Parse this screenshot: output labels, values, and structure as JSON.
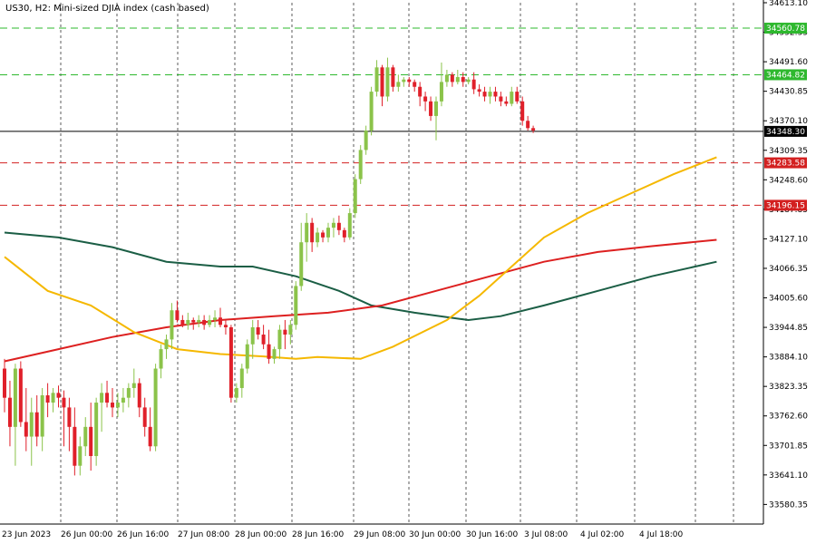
{
  "chart_title": "US30, H2:  Mini-sized DJIA index (cash based)",
  "colors": {
    "bull": "#8bc34a",
    "bear": "#e0202a",
    "ma_fast": "#f5b800",
    "ma_mid": "#dd2020",
    "ma_slow": "#1b5e45",
    "level_green": "#2eb82e",
    "level_red": "#d32020"
  },
  "chart_data": {
    "type": "candlestick",
    "symbol": "US30",
    "timeframe": "H2",
    "ylim": [
      33540,
      34613.1
    ],
    "grid": "vertical dashed",
    "y_ticks": [
      "34613.10",
      "34552.35",
      "34491.60",
      "34430.85",
      "34370.10",
      "34309.35",
      "34248.60",
      "34187.85",
      "34127.10",
      "34066.35",
      "34005.60",
      "33944.85",
      "33884.10",
      "33823.35",
      "33762.60",
      "33701.85",
      "33641.10",
      "33580.35"
    ],
    "x_ticks": [
      "23 Jun 2023",
      "26 Jun 00:00",
      "26 Jun 16:00",
      "27 Jun 08:00",
      "28 Jun 00:00",
      "28 Jun 16:00",
      "29 Jun 08:00",
      "30 Jun 00:00",
      "30 Jun 16:00",
      "3 Jul 08:00",
      "4 Jul 02:00",
      "4 Jul 18:00"
    ],
    "current_price": {
      "value": 34348.3,
      "label": "34348.30"
    },
    "levels": [
      {
        "value": 34560.78,
        "label": "34560.78",
        "kind": "resistance"
      },
      {
        "value": 34464.82,
        "label": "34464.82",
        "kind": "resistance"
      },
      {
        "value": 34283.58,
        "label": "34283.58",
        "kind": "support"
      },
      {
        "value": 34196.15,
        "label": "34196.15",
        "kind": "support"
      }
    ],
    "candles": [
      [
        33860,
        33880,
        33770,
        33800
      ],
      [
        33800,
        33835,
        33700,
        33740
      ],
      [
        33740,
        33870,
        33660,
        33860
      ],
      [
        33860,
        33875,
        33740,
        33750
      ],
      [
        33750,
        33820,
        33690,
        33720
      ],
      [
        33720,
        33800,
        33660,
        33770
      ],
      [
        33770,
        33805,
        33700,
        33720
      ],
      [
        33720,
        33820,
        33690,
        33805
      ],
      [
        33805,
        33830,
        33760,
        33790
      ],
      [
        33790,
        33820,
        33770,
        33810
      ],
      [
        33810,
        33825,
        33780,
        33800
      ],
      [
        33800,
        33815,
        33700,
        33780
      ],
      [
        33780,
        33800,
        33690,
        33740
      ],
      [
        33740,
        33780,
        33640,
        33660
      ],
      [
        33660,
        33720,
        33640,
        33700
      ],
      [
        33700,
        33760,
        33680,
        33740
      ],
      [
        33740,
        33790,
        33650,
        33680
      ],
      [
        33680,
        33800,
        33660,
        33790
      ],
      [
        33790,
        33830,
        33730,
        33810
      ],
      [
        33810,
        33835,
        33780,
        33790
      ],
      [
        33790,
        33820,
        33760,
        33780
      ],
      [
        33780,
        33810,
        33760,
        33790
      ],
      [
        33790,
        33820,
        33770,
        33800
      ],
      [
        33800,
        33830,
        33780,
        33820
      ],
      [
        33820,
        33860,
        33800,
        33830
      ],
      [
        33830,
        33840,
        33760,
        33780
      ],
      [
        33780,
        33800,
        33720,
        33740
      ],
      [
        33740,
        33780,
        33690,
        33700
      ],
      [
        33700,
        33870,
        33690,
        33860
      ],
      [
        33860,
        33910,
        33840,
        33900
      ],
      [
        33900,
        33930,
        33880,
        33920
      ],
      [
        33920,
        33995,
        33900,
        33980
      ],
      [
        33980,
        34000,
        33955,
        33960
      ],
      [
        33960,
        33970,
        33945,
        33950
      ],
      [
        33950,
        33975,
        33940,
        33960
      ],
      [
        33960,
        33965,
        33940,
        33955
      ],
      [
        33955,
        33970,
        33945,
        33960
      ],
      [
        33960,
        33970,
        33940,
        33950
      ],
      [
        33950,
        33970,
        33945,
        33960
      ],
      [
        33960,
        33980,
        33945,
        33965
      ],
      [
        33965,
        33985,
        33945,
        33950
      ],
      [
        33950,
        33960,
        33930,
        33945
      ],
      [
        33945,
        33950,
        33790,
        33800
      ],
      [
        33800,
        33830,
        33790,
        33820
      ],
      [
        33820,
        33870,
        33800,
        33860
      ],
      [
        33860,
        33920,
        33850,
        33910
      ],
      [
        33910,
        33960,
        33880,
        33945
      ],
      [
        33945,
        33960,
        33920,
        33930
      ],
      [
        33930,
        33950,
        33900,
        33910
      ],
      [
        33910,
        33940,
        33870,
        33880
      ],
      [
        33880,
        33905,
        33870,
        33900
      ],
      [
        33900,
        33950,
        33880,
        33940
      ],
      [
        33940,
        33960,
        33900,
        33930
      ],
      [
        33930,
        33960,
        33910,
        33950
      ],
      [
        33950,
        34040,
        33940,
        34030
      ],
      [
        34030,
        34160,
        34020,
        34120
      ],
      [
        34120,
        34180,
        34080,
        34160
      ],
      [
        34160,
        34170,
        34100,
        34120
      ],
      [
        34120,
        34150,
        34110,
        34140
      ],
      [
        34140,
        34145,
        34120,
        34130
      ],
      [
        34130,
        34160,
        34120,
        34150
      ],
      [
        34150,
        34170,
        34130,
        34160
      ],
      [
        34160,
        34175,
        34135,
        34145
      ],
      [
        34145,
        34150,
        34120,
        34130
      ],
      [
        34130,
        34190,
        34125,
        34180
      ],
      [
        34180,
        34260,
        34170,
        34250
      ],
      [
        34250,
        34320,
        34240,
        34310
      ],
      [
        34310,
        34360,
        34300,
        34350
      ],
      [
        34350,
        34440,
        34340,
        34430
      ],
      [
        34430,
        34495,
        34420,
        34480
      ],
      [
        34480,
        34485,
        34400,
        34420
      ],
      [
        34420,
        34500,
        34410,
        34480
      ],
      [
        34480,
        34485,
        34430,
        34440
      ],
      [
        34440,
        34465,
        34430,
        34450
      ],
      [
        34450,
        34460,
        34440,
        34455
      ],
      [
        34455,
        34460,
        34440,
        34450
      ],
      [
        34450,
        34455,
        34430,
        34440
      ],
      [
        34440,
        34450,
        34400,
        34420
      ],
      [
        34420,
        34430,
        34390,
        34410
      ],
      [
        34410,
        34420,
        34370,
        34380
      ],
      [
        34380,
        34420,
        34330,
        34410
      ],
      [
        34410,
        34490,
        34400,
        34450
      ],
      [
        34450,
        34475,
        34440,
        34465
      ],
      [
        34465,
        34470,
        34440,
        34450
      ],
      [
        34450,
        34475,
        34445,
        34460
      ],
      [
        34460,
        34470,
        34440,
        34450
      ],
      [
        34450,
        34460,
        34445,
        34455
      ],
      [
        34455,
        34470,
        34425,
        34435
      ],
      [
        34435,
        34445,
        34420,
        34430
      ],
      [
        34430,
        34440,
        34410,
        34420
      ],
      [
        34420,
        34440,
        34405,
        34430
      ],
      [
        34430,
        34440,
        34410,
        34420
      ],
      [
        34420,
        34430,
        34400,
        34410
      ],
      [
        34410,
        34420,
        34400,
        34405
      ],
      [
        34405,
        34440,
        34400,
        34430
      ],
      [
        34430,
        34440,
        34405,
        34410
      ],
      [
        34410,
        34420,
        34360,
        34370
      ],
      [
        34370,
        34380,
        34350,
        34355
      ],
      [
        34355,
        34360,
        34345,
        34350
      ]
    ],
    "ma_fast": [
      [
        0,
        34090
      ],
      [
        8,
        34020
      ],
      [
        16,
        33990
      ],
      [
        24,
        33935
      ],
      [
        32,
        33900
      ],
      [
        40,
        33890
      ],
      [
        48,
        33885
      ],
      [
        54,
        33880
      ],
      [
        58,
        33884
      ],
      [
        66,
        33880
      ],
      [
        72,
        33905
      ],
      [
        82,
        33960
      ],
      [
        88,
        34010
      ],
      [
        94,
        34070
      ],
      [
        100,
        34130
      ],
      [
        108,
        34180
      ],
      [
        116,
        34220
      ],
      [
        124,
        34260
      ],
      [
        132,
        34295
      ]
    ],
    "ma_mid": [
      [
        0,
        33875
      ],
      [
        10,
        33900
      ],
      [
        20,
        33925
      ],
      [
        30,
        33945
      ],
      [
        40,
        33960
      ],
      [
        50,
        33968
      ],
      [
        60,
        33975
      ],
      [
        70,
        33990
      ],
      [
        80,
        34020
      ],
      [
        90,
        34050
      ],
      [
        100,
        34080
      ],
      [
        110,
        34100
      ],
      [
        120,
        34112
      ],
      [
        132,
        34125
      ]
    ],
    "ma_slow": [
      [
        0,
        34140
      ],
      [
        10,
        34130
      ],
      [
        20,
        34110
      ],
      [
        30,
        34080
      ],
      [
        40,
        34070
      ],
      [
        46,
        34070
      ],
      [
        54,
        34050
      ],
      [
        62,
        34020
      ],
      [
        68,
        33990
      ],
      [
        76,
        33975
      ],
      [
        86,
        33960
      ],
      [
        92,
        33968
      ],
      [
        100,
        33990
      ],
      [
        110,
        34020
      ],
      [
        120,
        34050
      ],
      [
        132,
        34080
      ]
    ]
  }
}
